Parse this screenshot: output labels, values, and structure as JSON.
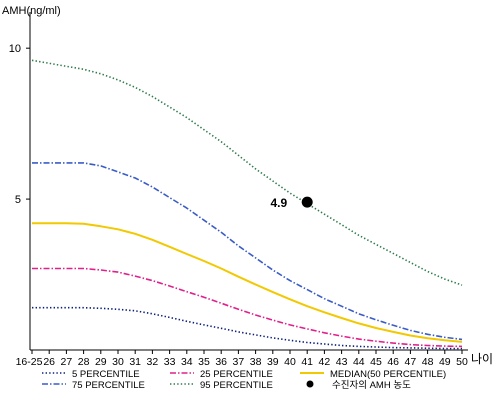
{
  "chart_data": {
    "type": "line",
    "ylabel": "AMH(ng/ml)",
    "xlabel": "나이",
    "ylim": [
      0,
      11
    ],
    "yticks": [
      5,
      10
    ],
    "categories": [
      "16-25",
      "26",
      "27",
      "28",
      "29",
      "30",
      "31",
      "32",
      "33",
      "34",
      "35",
      "36",
      "37",
      "38",
      "39",
      "40",
      "41",
      "42",
      "43",
      "44",
      "45",
      "46",
      "47",
      "48",
      "49",
      "50"
    ],
    "series": [
      {
        "name": "5 PERCENTILE",
        "color": "#0b1e7a",
        "dash": "dotted",
        "values": [
          1.4,
          1.4,
          1.4,
          1.4,
          1.38,
          1.35,
          1.3,
          1.2,
          1.08,
          0.95,
          0.83,
          0.72,
          0.6,
          0.5,
          0.4,
          0.32,
          0.25,
          0.2,
          0.15,
          0.12,
          0.1,
          0.08,
          0.07,
          0.06,
          0.05,
          0.05
        ]
      },
      {
        "name": "75 PERCENTILE",
        "color": "#3a5cc7",
        "dash": "dashdot",
        "values": [
          6.2,
          6.2,
          6.2,
          6.2,
          6.1,
          5.9,
          5.7,
          5.4,
          5.05,
          4.7,
          4.3,
          3.9,
          3.45,
          3.05,
          2.65,
          2.3,
          2.0,
          1.7,
          1.45,
          1.2,
          1.0,
          0.82,
          0.65,
          0.52,
          0.42,
          0.35
        ]
      },
      {
        "name": "25 PERCENTILE",
        "color": "#e0208c",
        "dash": "dashdot",
        "values": [
          2.7,
          2.7,
          2.7,
          2.7,
          2.65,
          2.58,
          2.45,
          2.3,
          2.12,
          1.93,
          1.75,
          1.55,
          1.35,
          1.16,
          0.99,
          0.83,
          0.7,
          0.57,
          0.46,
          0.36,
          0.29,
          0.23,
          0.18,
          0.15,
          0.13,
          0.12
        ]
      },
      {
        "name": "95 PERCENTILE",
        "color": "#2d7a4a",
        "dash": "dotted",
        "values": [
          9.6,
          9.5,
          9.4,
          9.3,
          9.15,
          8.95,
          8.7,
          8.4,
          8.05,
          7.7,
          7.3,
          6.9,
          6.45,
          6.0,
          5.6,
          5.2,
          4.85,
          4.5,
          4.15,
          3.8,
          3.5,
          3.2,
          2.9,
          2.6,
          2.35,
          2.15
        ]
      },
      {
        "name": "MEDIAN(50 PERCENTILE)",
        "color": "#f2c800",
        "dash": "solid",
        "values": [
          4.2,
          4.2,
          4.2,
          4.18,
          4.1,
          4.0,
          3.85,
          3.65,
          3.42,
          3.18,
          2.95,
          2.7,
          2.43,
          2.17,
          1.92,
          1.68,
          1.45,
          1.25,
          1.06,
          0.88,
          0.73,
          0.6,
          0.48,
          0.39,
          0.32,
          0.27
        ]
      }
    ],
    "highlight": {
      "name": "수진자의 AMH 농도",
      "x": "41",
      "y": 4.9,
      "label": "4.9",
      "color": "#000000"
    },
    "legend": {
      "placement": "bottom"
    },
    "grid": false
  }
}
